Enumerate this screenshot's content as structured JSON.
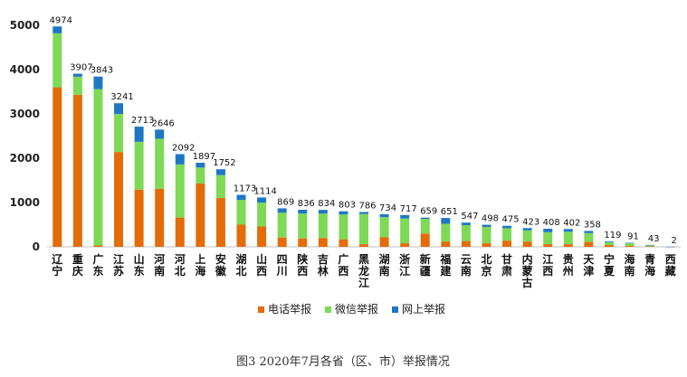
{
  "chart_data": {
    "type": "bar",
    "stacked": true,
    "caption": "图3  2020年7月各省（区、市）举报情况",
    "categories": [
      "辽宁",
      "重庆",
      "广东",
      "江苏",
      "山东",
      "河南",
      "河北",
      "上海",
      "安徽",
      "湖北",
      "山西",
      "四川",
      "陕西",
      "吉林",
      "广西",
      "黑龙江",
      "湖南",
      "浙江",
      "新疆",
      "福建",
      "云南",
      "北京",
      "甘肃",
      "内蒙古",
      "江西",
      "贵州",
      "天津",
      "宁夏",
      "海南",
      "青海",
      "西藏"
    ],
    "totals": [
      4974,
      3907,
      3843,
      3241,
      2713,
      2646,
      2092,
      1897,
      1752,
      1173,
      1114,
      869,
      836,
      834,
      803,
      786,
      734,
      717,
      659,
      651,
      547,
      498,
      475,
      423,
      408,
      402,
      358,
      119,
      91,
      43,
      2
    ],
    "series": [
      {
        "name": "电话举报",
        "color": "#e36c09",
        "values": [
          3600,
          3430,
          30,
          2140,
          1290,
          1310,
          660,
          1430,
          1100,
          500,
          460,
          210,
          190,
          200,
          170,
          60,
          220,
          80,
          300,
          120,
          130,
          80,
          140,
          120,
          60,
          60,
          110,
          40,
          20,
          10,
          1
        ]
      },
      {
        "name": "微信举报",
        "color": "#7ed957",
        "values": [
          1220,
          410,
          3530,
          860,
          1080,
          1130,
          1200,
          360,
          520,
          560,
          540,
          560,
          560,
          550,
          560,
          680,
          450,
          560,
          330,
          400,
          360,
          370,
          280,
          250,
          270,
          280,
          200,
          60,
          60,
          25,
          0
        ]
      },
      {
        "name": "网上举报",
        "color": "#1f77c4",
        "values": [
          154,
          67,
          283,
          241,
          343,
          206,
          232,
          107,
          132,
          113,
          114,
          99,
          86,
          84,
          73,
          46,
          64,
          77,
          29,
          131,
          57,
          48,
          55,
          53,
          78,
          62,
          48,
          19,
          11,
          8,
          1
        ]
      }
    ],
    "ylim": [
      0,
      5000
    ],
    "yticks": [
      0,
      1000,
      2000,
      3000,
      4000,
      5000
    ],
    "legend_position": "bottom",
    "grid": false
  }
}
